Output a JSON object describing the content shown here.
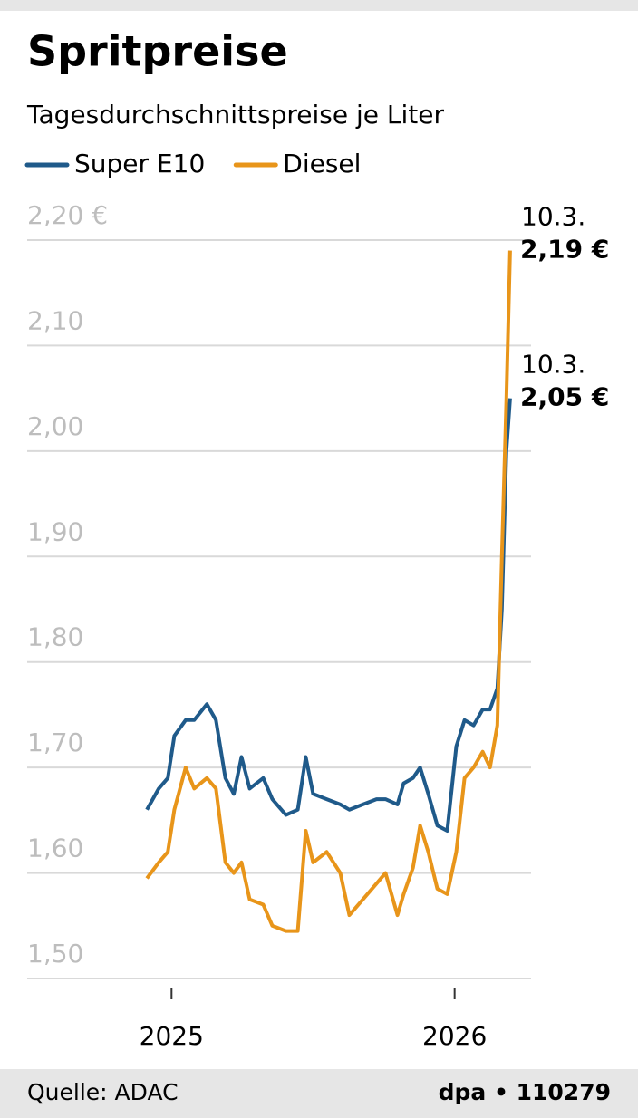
{
  "chart_data": {
    "type": "line",
    "title": "Spritpreise",
    "subtitle": "Tagesdurchschnittspreise je Liter",
    "source": "Quelle: ADAC",
    "credit": "dpa • 110279",
    "x": [
      2024.913,
      2024.955,
      2024.987,
      2025.01,
      2025.05,
      2025.08,
      2025.125,
      2025.157,
      2025.19,
      2025.22,
      2025.247,
      2025.276,
      2025.324,
      2025.356,
      2025.404,
      2025.446,
      2025.474,
      2025.5,
      2025.548,
      2025.596,
      2025.628,
      2025.676,
      2025.724,
      2025.756,
      2025.798,
      2025.82,
      2025.853,
      2025.878,
      2025.907,
      2025.939,
      2025.974,
      2026.006,
      2026.035,
      2026.067,
      2026.099,
      2026.125,
      2026.151,
      2026.167,
      2026.183,
      2026.196
    ],
    "series": [
      {
        "name": "Super E10",
        "color": "#1f5a8a",
        "end_date": "10.3.",
        "end_label": "2,05 €",
        "values": [
          1.66,
          1.68,
          1.69,
          1.73,
          1.745,
          1.745,
          1.76,
          1.745,
          1.69,
          1.675,
          1.71,
          1.68,
          1.69,
          1.67,
          1.655,
          1.66,
          1.71,
          1.675,
          1.67,
          1.665,
          1.66,
          1.665,
          1.67,
          1.67,
          1.665,
          1.685,
          1.69,
          1.7,
          1.675,
          1.645,
          1.64,
          1.72,
          1.745,
          1.74,
          1.755,
          1.755,
          1.775,
          1.85,
          2.0,
          2.05
        ]
      },
      {
        "name": "Diesel",
        "color": "#e8951a",
        "end_date": "10.3.",
        "end_label": "2,19 €",
        "values": [
          1.595,
          1.61,
          1.62,
          1.66,
          1.7,
          1.68,
          1.69,
          1.68,
          1.61,
          1.6,
          1.61,
          1.575,
          1.57,
          1.55,
          1.545,
          1.545,
          1.64,
          1.61,
          1.62,
          1.6,
          1.56,
          1.575,
          1.59,
          1.6,
          1.56,
          1.58,
          1.605,
          1.645,
          1.62,
          1.585,
          1.58,
          1.62,
          1.69,
          1.7,
          1.715,
          1.7,
          1.74,
          1.9,
          2.05,
          2.19
        ]
      }
    ],
    "xlim": [
      2024.49,
      2026.27
    ],
    "xticks": [
      2025,
      2026
    ],
    "ylim": [
      1.5,
      2.2
    ],
    "yticks": [
      {
        "value": 1.5,
        "label": "1,50"
      },
      {
        "value": 1.6,
        "label": "1,60"
      },
      {
        "value": 1.7,
        "label": "1,70"
      },
      {
        "value": 1.8,
        "label": "1,80"
      },
      {
        "value": 1.9,
        "label": "1,90"
      },
      {
        "value": 2.0,
        "label": "2,00"
      },
      {
        "value": 2.1,
        "label": "2,10"
      },
      {
        "value": 2.2,
        "label": "2,20 €"
      }
    ],
    "grid": true
  }
}
